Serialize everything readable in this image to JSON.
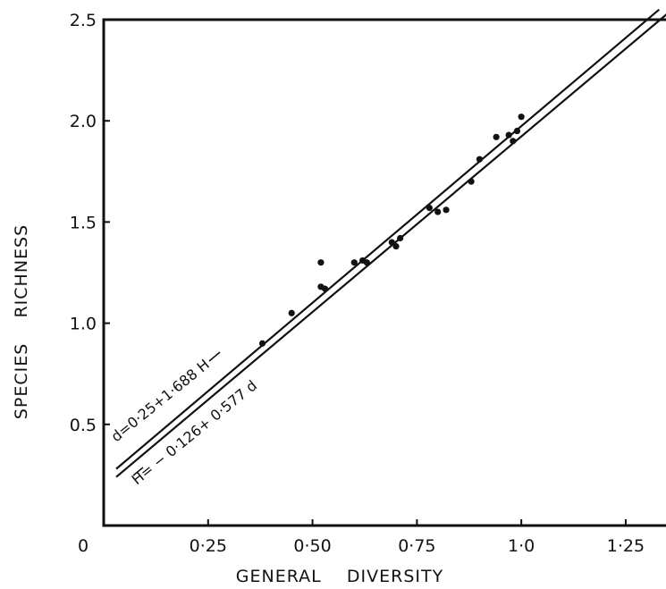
{
  "chart_data": {
    "type": "scatter",
    "title": "",
    "xlabel": "GENERAL    DIVERSITY",
    "ylabel": "SPECIES    RICHNESS",
    "xlim": [
      0,
      1.37
    ],
    "ylim": [
      0,
      2.5
    ],
    "x_ticks": [
      {
        "value": 0.25,
        "label": "0·25"
      },
      {
        "value": 0.5,
        "label": "0·50"
      },
      {
        "value": 0.75,
        "label": "0·75"
      },
      {
        "value": 1.0,
        "label": "1·0"
      },
      {
        "value": 1.25,
        "label": "1·25"
      }
    ],
    "origin_label": "0",
    "y_ticks": [
      {
        "value": 0.5,
        "label": "0.5"
      },
      {
        "value": 1.0,
        "label": "1.0"
      },
      {
        "value": 1.5,
        "label": "1.5"
      },
      {
        "value": 2.0,
        "label": "2.0"
      },
      {
        "value": 2.5,
        "label": "2.5"
      }
    ],
    "grid": false,
    "points": [
      {
        "x": 0.38,
        "y": 0.9
      },
      {
        "x": 0.45,
        "y": 1.05
      },
      {
        "x": 0.52,
        "y": 1.18
      },
      {
        "x": 0.53,
        "y": 1.17
      },
      {
        "x": 0.52,
        "y": 1.3
      },
      {
        "x": 0.6,
        "y": 1.3
      },
      {
        "x": 0.62,
        "y": 1.31
      },
      {
        "x": 0.63,
        "y": 1.3
      },
      {
        "x": 0.69,
        "y": 1.4
      },
      {
        "x": 0.7,
        "y": 1.38
      },
      {
        "x": 0.71,
        "y": 1.42
      },
      {
        "x": 0.78,
        "y": 1.57
      },
      {
        "x": 0.8,
        "y": 1.55
      },
      {
        "x": 0.82,
        "y": 1.56
      },
      {
        "x": 0.88,
        "y": 1.7
      },
      {
        "x": 0.9,
        "y": 1.81
      },
      {
        "x": 0.94,
        "y": 1.92
      },
      {
        "x": 0.97,
        "y": 1.93
      },
      {
        "x": 0.98,
        "y": 1.9
      },
      {
        "x": 0.99,
        "y": 1.95
      },
      {
        "x": 1.0,
        "y": 2.02
      }
    ],
    "lines": [
      {
        "name": "d=0·25+1·688 H",
        "x": [
          0.03,
          1.33
        ],
        "y": [
          0.28,
          2.55
        ]
      },
      {
        "name": "H= − 0·126+ 0·577 d",
        "x": [
          0.03,
          1.35
        ],
        "y": [
          0.24,
          2.53
        ]
      }
    ]
  }
}
